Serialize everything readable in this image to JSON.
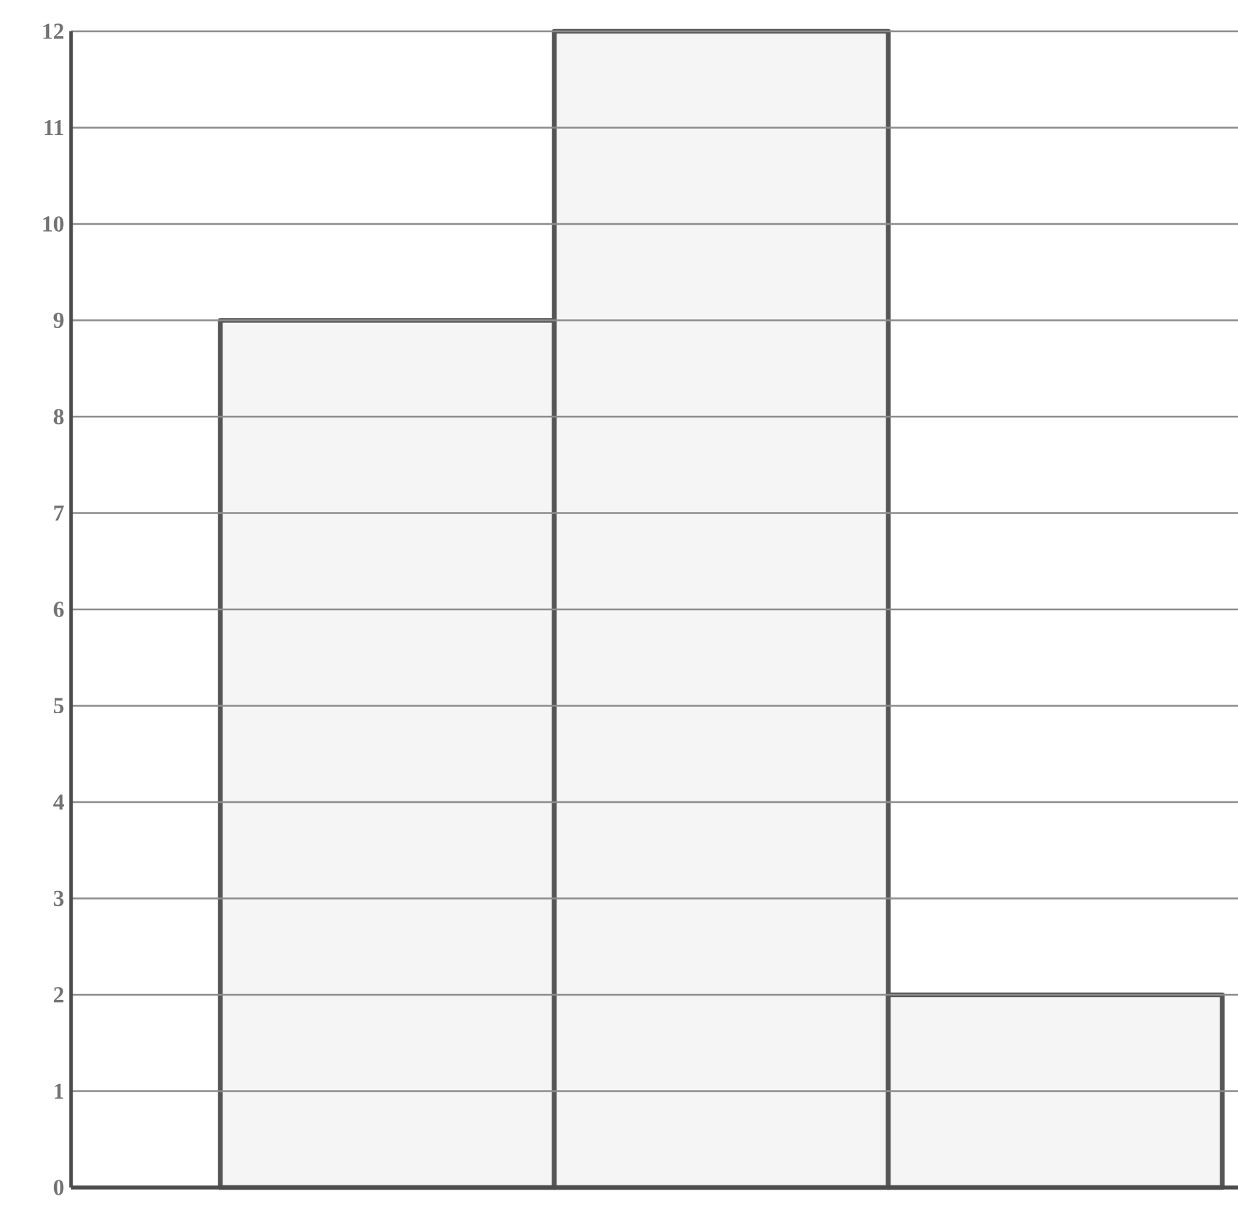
{
  "chart_data": {
    "type": "bar",
    "categories": [
      null,
      null,
      null
    ],
    "series": [
      {
        "color": "#555555",
        "values": [
          9,
          12,
          2
        ]
      }
    ],
    "ylim": [
      0,
      12
    ],
    "yticks": [
      0,
      1,
      2,
      3,
      4,
      5,
      6,
      7,
      8,
      9,
      10,
      11,
      12
    ],
    "grid": "y",
    "tick_labels": "y"
  }
}
